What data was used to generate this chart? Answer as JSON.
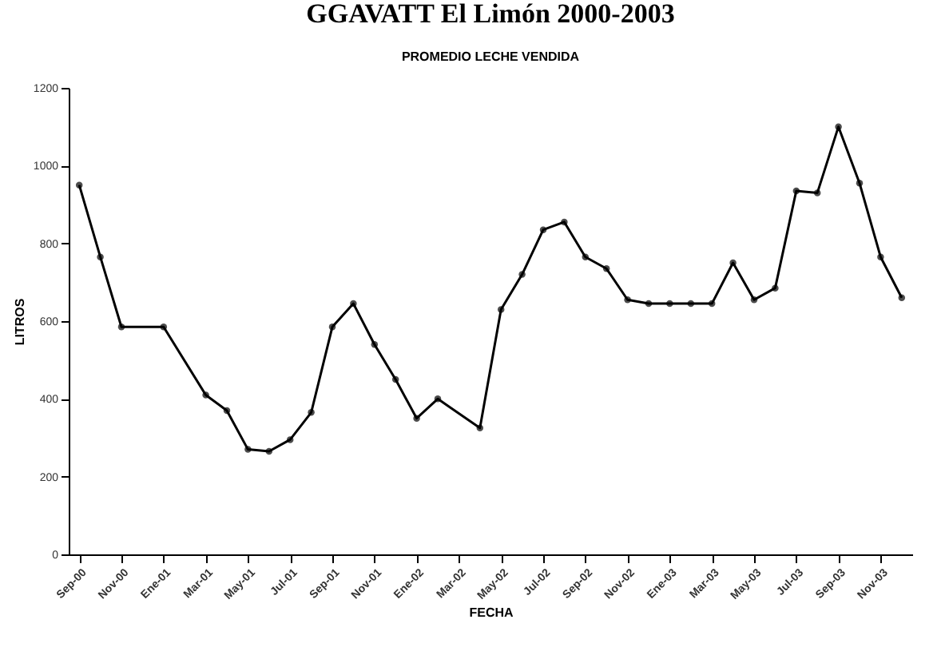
{
  "chart_data": {
    "type": "line",
    "title": "GGAVATT El Limón 2000-2003",
    "subtitle": "PROMEDIO LECHE VENDIDA",
    "xlabel": "FECHA",
    "ylabel": "LITROS",
    "categories": [
      "Sep-00",
      null,
      "Nov-00",
      null,
      "Ene-01",
      null,
      "Mar-01",
      null,
      "May-01",
      null,
      "Jul-01",
      null,
      "Sep-01",
      null,
      "Nov-01",
      null,
      "Ene-02",
      null,
      "Mar-02",
      null,
      "May-02",
      null,
      "Jul-02",
      null,
      "Sep-02",
      null,
      "Nov-02",
      null,
      "Ene-03",
      null,
      "Mar-03",
      null,
      "May-03",
      null,
      "Jul-03",
      null,
      "Sep-03",
      null,
      "Nov-03",
      null
    ],
    "series": [
      {
        "color": "#000000",
        "values": [
          950,
          765,
          585,
          null,
          585,
          null,
          410,
          370,
          270,
          265,
          295,
          365,
          585,
          645,
          540,
          450,
          350,
          400,
          null,
          325,
          630,
          720,
          835,
          855,
          765,
          735,
          655,
          645,
          645,
          645,
          645,
          750,
          655,
          685,
          935,
          930,
          1100,
          955,
          765,
          660
        ]
      }
    ],
    "ylim": [
      0,
      1200
    ],
    "yticks": [
      0,
      200,
      400,
      600,
      800,
      1000,
      1200
    ],
    "grid": false,
    "legend": false,
    "marker": "circle",
    "line_style": "solid"
  }
}
